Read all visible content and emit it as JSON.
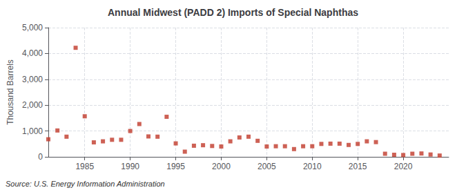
{
  "chart_data": {
    "type": "scatter",
    "title": "Annual Midwest (PADD 2) Imports of Special Naphthas",
    "ylabel": "Thousand Barrels",
    "annotation": "Source: U.S. Energy Information Administration",
    "x": [
      1981,
      1982,
      1983,
      1984,
      1985,
      1986,
      1987,
      1988,
      1989,
      1990,
      1991,
      1992,
      1993,
      1994,
      1995,
      1996,
      1997,
      1998,
      1999,
      2000,
      2001,
      2002,
      2003,
      2004,
      2005,
      2006,
      2007,
      2008,
      2009,
      2010,
      2011,
      2012,
      2013,
      2014,
      2015,
      2016,
      2017,
      2018,
      2019,
      2020,
      2021,
      2022,
      2023,
      2024
    ],
    "values": [
      680,
      1020,
      780,
      4220,
      1570,
      560,
      600,
      660,
      660,
      1000,
      1270,
      790,
      780,
      1550,
      520,
      200,
      430,
      450,
      420,
      400,
      600,
      750,
      780,
      620,
      400,
      410,
      410,
      300,
      410,
      410,
      500,
      510,
      510,
      460,
      500,
      600,
      570,
      120,
      80,
      70,
      120,
      130,
      90,
      50
    ],
    "color": "#c0392b",
    "marker": "square",
    "xlim": [
      1981,
      2025
    ],
    "xticks": [
      1985,
      1990,
      1995,
      2000,
      2005,
      2010,
      2015,
      2020
    ],
    "ylim": [
      0,
      5000
    ],
    "yticks": [
      0,
      {
        "value": 1000,
        "label": "1,000"
      },
      {
        "value": 2000,
        "label": "2,000"
      },
      {
        "value": 3000,
        "label": "3,000"
      },
      {
        "value": 4000,
        "label": "4,000"
      },
      {
        "value": 5000,
        "label": "5,000"
      }
    ],
    "grid": true
  }
}
